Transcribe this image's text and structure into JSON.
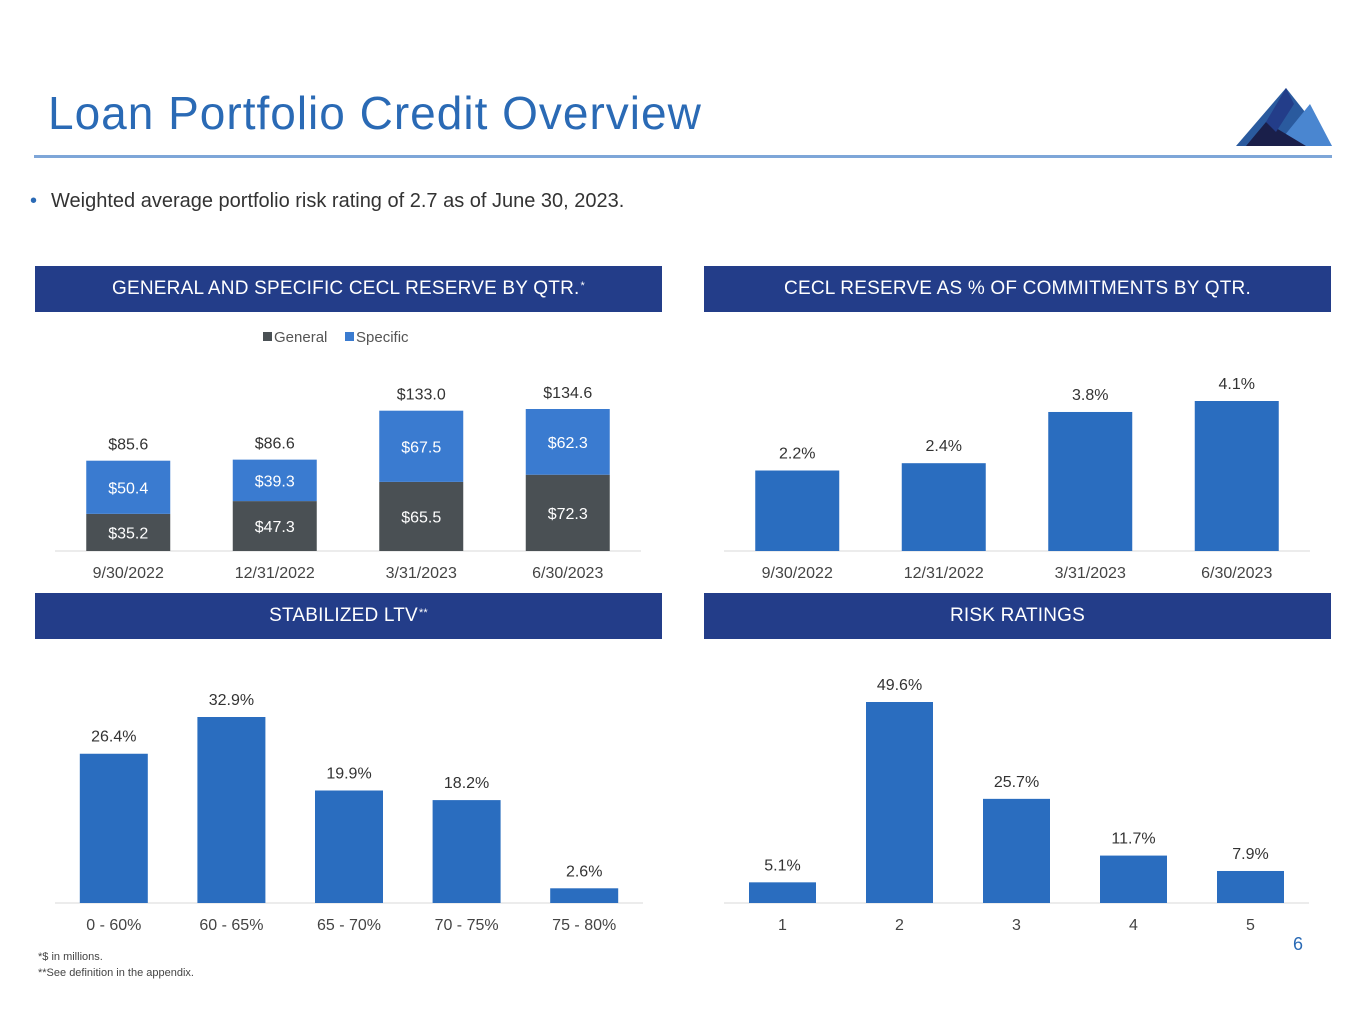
{
  "title": "Loan Portfolio Credit Overview",
  "bullet": "Weighted average portfolio risk rating of 2.7 as of June 30, 2023.",
  "colors": {
    "accent": "#2a6ab5",
    "header_bg": "#233d89",
    "general": "#4a5054",
    "specific": "#3a7bd0",
    "bar": "#2a6dbf"
  },
  "panels": {
    "cecl_reserve": {
      "header": "GENERAL AND SPECIFIC CECL RESERVE BY QTR.",
      "header_mark": "*"
    },
    "cecl_pct": {
      "header": "CECL RESERVE AS % OF COMMITMENTS BY QTR.",
      "header_mark": ""
    },
    "ltv": {
      "header": "STABILIZED LTV",
      "header_mark": "**"
    },
    "risk": {
      "header": "RISK RATINGS",
      "header_mark": ""
    }
  },
  "chart_data": [
    {
      "type": "bar",
      "stacked": true,
      "categories": [
        "9/30/2022",
        "12/31/2022",
        "3/31/2023",
        "6/30/2023"
      ],
      "series": [
        {
          "name": "General",
          "values": [
            35.2,
            47.3,
            65.5,
            72.3
          ],
          "labels": [
            "$35.2",
            "$47.3",
            "$65.5",
            "$72.3"
          ]
        },
        {
          "name": "Specific",
          "values": [
            50.4,
            39.3,
            67.5,
            62.3
          ],
          "labels": [
            "$50.4",
            "$39.3",
            "$67.5",
            "$62.3"
          ]
        }
      ],
      "totals": [
        "$85.6",
        "$86.6",
        "$133.0",
        "$134.6"
      ],
      "legend": "top",
      "ylim": [
        0,
        160
      ],
      "grid": false
    },
    {
      "type": "bar",
      "categories": [
        "9/30/2022",
        "12/31/2022",
        "3/31/2023",
        "6/30/2023"
      ],
      "values": [
        2.2,
        2.4,
        3.8,
        4.1
      ],
      "labels": [
        "2.2%",
        "2.4%",
        "3.8%",
        "4.1%"
      ],
      "ylim": [
        0,
        5
      ],
      "grid": false
    },
    {
      "type": "bar",
      "categories": [
        "0 - 60%",
        "60 - 65%",
        "65 - 70%",
        "70 - 75%",
        "75 - 80%"
      ],
      "values": [
        26.4,
        32.9,
        19.9,
        18.2,
        2.6
      ],
      "labels": [
        "26.4%",
        "32.9%",
        "19.9%",
        "18.2%",
        "2.6%"
      ],
      "ylim": [
        0,
        40
      ],
      "grid": false
    },
    {
      "type": "bar",
      "categories": [
        "1",
        "2",
        "3",
        "4",
        "5"
      ],
      "values": [
        5.1,
        49.6,
        25.7,
        11.7,
        7.9
      ],
      "labels": [
        "5.1%",
        "49.6%",
        "25.7%",
        "11.7%",
        "7.9%"
      ],
      "ylim": [
        0,
        58
      ],
      "grid": false
    }
  ],
  "footnotes": [
    "*$ in millions.",
    "**See definition in the appendix."
  ],
  "page_number": "6"
}
